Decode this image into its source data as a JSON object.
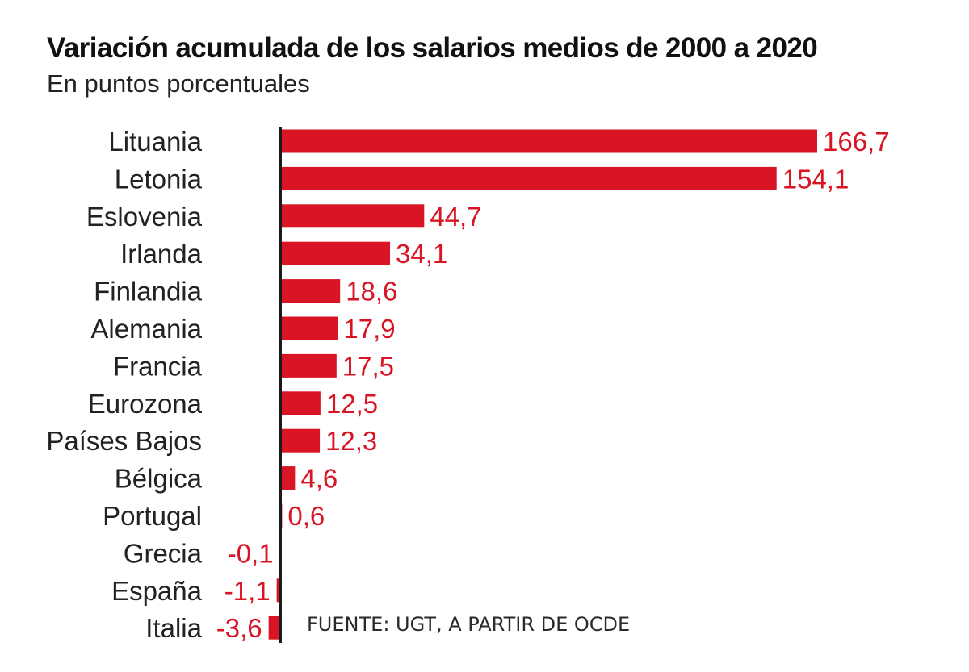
{
  "chart_data": {
    "type": "bar",
    "orientation": "horizontal",
    "title": "Variación acumulada de los salarios medios de 2000 a 2020",
    "subtitle": "En puntos porcentuales",
    "categories": [
      "Lituania",
      "Letonia",
      "Eslovenia",
      "Irlanda",
      "Finlandia",
      "Alemania",
      "Francia",
      "Eurozona",
      "Países Bajos",
      "Bélgica",
      "Portugal",
      "Grecia",
      "España",
      "Italia"
    ],
    "values": [
      166.7,
      154.1,
      44.7,
      34.1,
      18.6,
      17.9,
      17.5,
      12.5,
      12.3,
      4.6,
      0.6,
      -0.1,
      -1.1,
      -3.6
    ],
    "value_labels": [
      "166,7",
      "154,1",
      "44,7",
      "34,1",
      "18,6",
      "17,9",
      "17,5",
      "12,5",
      "12,3",
      "4,6",
      "0,6",
      "-0,1",
      "-1,1",
      "-3,6"
    ],
    "xlim": [
      -3.6,
      166.7
    ],
    "grid": false,
    "legend": "none",
    "bar_color": "#d91425",
    "axis_color": "#1a1a1a",
    "source": "FUENTE: UGT, A PARTIR DE OCDE"
  }
}
